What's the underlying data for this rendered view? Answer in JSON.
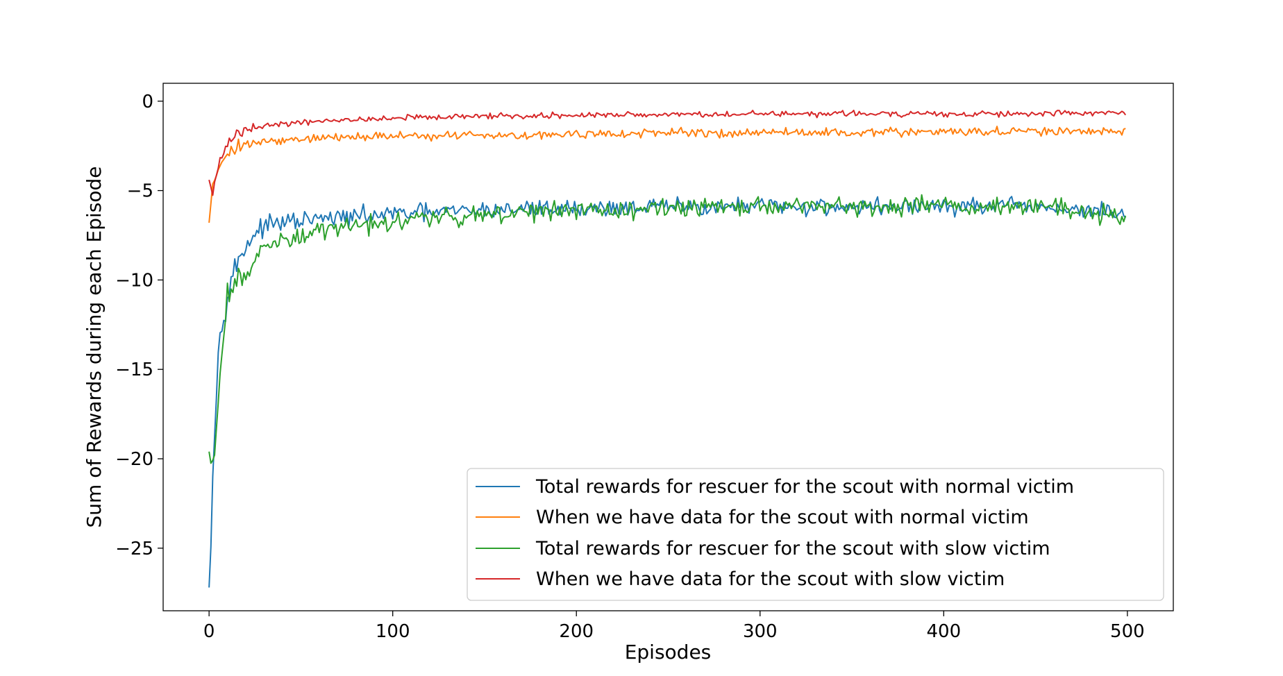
{
  "chart_data": {
    "type": "line",
    "title": "",
    "xlabel": "Episodes",
    "ylabel": "Sum of Rewards during each Episode",
    "xlim": [
      -25,
      525
    ],
    "ylim": [
      -28.5,
      1.0
    ],
    "xticks": [
      0,
      100,
      200,
      300,
      400,
      500
    ],
    "yticks": [
      0,
      -5,
      -10,
      -15,
      -20,
      -25
    ],
    "xtick_labels": [
      "0",
      "100",
      "200",
      "300",
      "400",
      "500"
    ],
    "ytick_labels": [
      "0",
      "−5",
      "−10",
      "−15",
      "−20",
      "−25"
    ],
    "grid": false,
    "legend_position": "lower-right",
    "episodes": 500,
    "series": [
      {
        "name": "Total rewards for rescuer for the scout with normal victim",
        "color": "#1f77b4",
        "x": [
          0,
          2,
          4,
          6,
          8,
          10,
          12,
          15,
          18,
          20,
          25,
          30,
          40,
          50,
          60,
          75,
          100,
          125,
          150,
          175,
          200,
          250,
          300,
          350,
          400,
          450,
          499
        ],
        "y": [
          -27.2,
          -21.0,
          -16.0,
          -13.0,
          -11.6,
          -10.8,
          -10.0,
          -9.2,
          -8.5,
          -8.0,
          -7.4,
          -7.0,
          -6.8,
          -6.7,
          -6.6,
          -6.5,
          -6.3,
          -6.2,
          -6.1,
          -6.0,
          -6.0,
          -5.9,
          -5.9,
          -5.9,
          -5.9,
          -5.9,
          -6.3
        ],
        "noise": 0.45
      },
      {
        "name": "When we have data for the scout with normal victim",
        "color": "#ff7f0e",
        "x": [
          0,
          2,
          4,
          6,
          8,
          10,
          15,
          20,
          30,
          50,
          75,
          100,
          150,
          200,
          250,
          300,
          350,
          400,
          450,
          499
        ],
        "y": [
          -6.8,
          -4.6,
          -4.0,
          -3.5,
          -3.1,
          -2.9,
          -2.6,
          -2.4,
          -2.3,
          -2.1,
          -2.0,
          -1.95,
          -1.9,
          -1.85,
          -1.8,
          -1.75,
          -1.75,
          -1.7,
          -1.7,
          -1.7
        ],
        "noise": 0.22
      },
      {
        "name": "Total rewards for rescuer for the scout with slow victim",
        "color": "#2ca02c",
        "x": [
          0,
          2,
          4,
          6,
          8,
          10,
          12,
          15,
          18,
          20,
          25,
          30,
          40,
          50,
          60,
          75,
          100,
          125,
          150,
          175,
          200,
          250,
          300,
          350,
          400,
          450,
          499
        ],
        "y": [
          -19.6,
          -20.8,
          -18.2,
          -15.5,
          -13.2,
          -11.0,
          -10.6,
          -10.3,
          -9.9,
          -9.5,
          -8.8,
          -8.3,
          -7.9,
          -7.6,
          -7.3,
          -7.0,
          -6.7,
          -6.5,
          -6.3,
          -6.2,
          -6.1,
          -6.0,
          -5.9,
          -5.85,
          -5.8,
          -5.8,
          -6.4
        ],
        "noise": 0.5
      },
      {
        "name": "When we have data for the scout with slow victim",
        "color": "#d62728",
        "x": [
          0,
          2,
          4,
          6,
          8,
          10,
          15,
          20,
          30,
          50,
          75,
          100,
          150,
          200,
          250,
          300,
          350,
          400,
          450,
          499
        ],
        "y": [
          -4.4,
          -5.2,
          -4.2,
          -3.4,
          -2.8,
          -2.3,
          -1.9,
          -1.7,
          -1.4,
          -1.2,
          -1.05,
          -0.95,
          -0.85,
          -0.8,
          -0.75,
          -0.7,
          -0.7,
          -0.7,
          -0.7,
          -0.65
        ],
        "noise": 0.15
      }
    ]
  }
}
